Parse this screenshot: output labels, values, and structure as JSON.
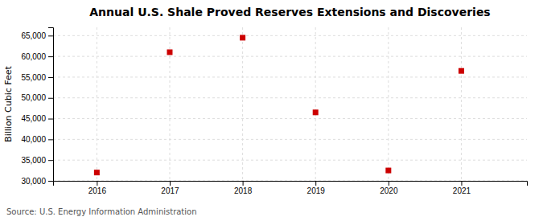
{
  "chart_data": {
    "type": "scatter",
    "title": "Annual U.S. Shale Proved Reserves Extensions and Discoveries",
    "ylabel": "Billion Cubic Feet",
    "source": "Source: U.S. Energy Information Administration",
    "x": [
      2016,
      2017,
      2018,
      2019,
      2020,
      2021
    ],
    "values": [
      32000,
      61000,
      64500,
      46500,
      32500,
      56500
    ],
    "color": "#cc0000",
    "marker": "square",
    "xlim": [
      2015.4,
      2021.9
    ],
    "xticks": [
      2016,
      2017,
      2018,
      2019,
      2020,
      2021
    ],
    "ylim": [
      30000,
      67000
    ],
    "yticks": [
      {
        "value": 30000,
        "label": "30,000"
      },
      {
        "value": 35000,
        "label": "35,000"
      },
      {
        "value": 40000,
        "label": "40,000"
      },
      {
        "value": 45000,
        "label": "45,000"
      },
      {
        "value": 50000,
        "label": "50,000"
      },
      {
        "value": 55000,
        "label": "55,000"
      },
      {
        "value": 60000,
        "label": "60,000"
      },
      {
        "value": 65000,
        "label": "65,000"
      }
    ],
    "grid": true
  }
}
